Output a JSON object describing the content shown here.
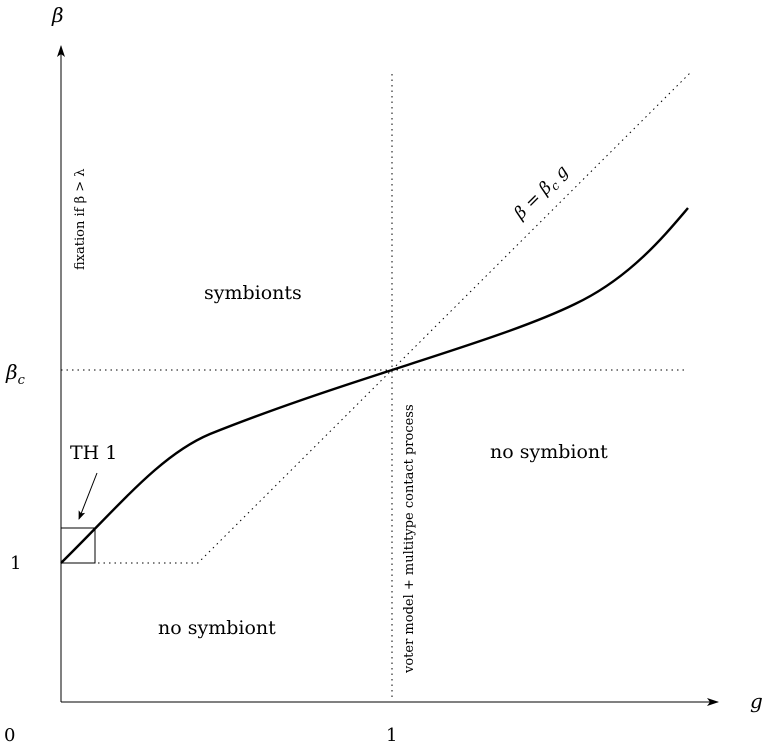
{
  "axes": {
    "y_label": "β",
    "x_label": "g",
    "origin_label": "0",
    "x_tick_one": "1",
    "y_tick_one": "1",
    "y_tick_beta_c_main": "β",
    "y_tick_beta_c_sub": "c"
  },
  "regions": {
    "symbionts": "symbionts",
    "no_symbiont_right": "no symbiont",
    "no_symbiont_bottom": "no symbiont"
  },
  "annotations": {
    "th1": "TH 1",
    "fixation": "fixation if β > λ",
    "voter_model": "voter model + multitype contact process",
    "diagonal_a": "β = β",
    "diagonal_sub": "c",
    "diagonal_b": " g"
  },
  "colors": {
    "stroke": "#000000",
    "background": "#ffffff"
  }
}
